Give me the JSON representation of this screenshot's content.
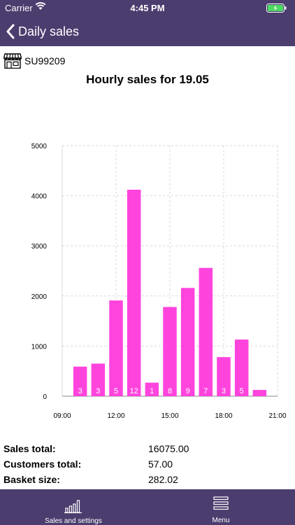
{
  "status": {
    "carrier": "Carrier",
    "time": "4:45 PM"
  },
  "nav": {
    "back_label": "Daily sales"
  },
  "store": {
    "id": "SU99209"
  },
  "colors": {
    "accent": "#4b3d6e",
    "bar": "#ff44dd"
  },
  "chart_data": {
    "type": "bar",
    "title": "Hourly sales for 19.05",
    "x_ticks": [
      "09:00",
      "12:00",
      "15:00",
      "18:00",
      "21:00"
    ],
    "y_ticks": [
      "0",
      "1000",
      "2000",
      "3000",
      "4000",
      "5000"
    ],
    "ylim": [
      0,
      5000
    ],
    "xlim": [
      9,
      21
    ],
    "grid": true,
    "bars": [
      {
        "hour": 10,
        "value": 590,
        "label": "3"
      },
      {
        "hour": 11,
        "value": 650,
        "label": "3"
      },
      {
        "hour": 12,
        "value": 1910,
        "label": "5"
      },
      {
        "hour": 13,
        "value": 4120,
        "label": "12"
      },
      {
        "hour": 14,
        "value": 270,
        "label": "1"
      },
      {
        "hour": 15,
        "value": 1780,
        "label": "8"
      },
      {
        "hour": 16,
        "value": 2160,
        "label": "9"
      },
      {
        "hour": 17,
        "value": 2560,
        "label": "7"
      },
      {
        "hour": 18,
        "value": 780,
        "label": "3"
      },
      {
        "hour": 19,
        "value": 1130,
        "label": "5"
      },
      {
        "hour": 20,
        "value": 125,
        "label": ""
      }
    ]
  },
  "summary": {
    "sales_total_label": "Sales total:",
    "sales_total_value": "16075.00",
    "customers_total_label": "Customers total:",
    "customers_total_value": "57.00",
    "basket_size_label": "Basket size:",
    "basket_size_value": "282.02"
  },
  "tabbar": {
    "sales_label": "Sales and settings",
    "menu_label": "Menu"
  }
}
